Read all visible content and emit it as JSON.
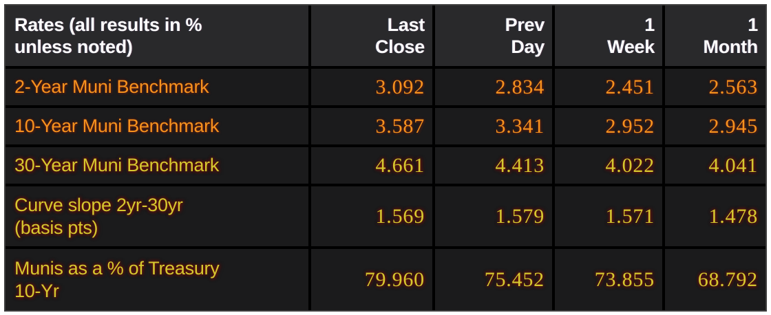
{
  "table": {
    "header": {
      "title": "Rates (all results in %\nunless noted)",
      "columns": [
        "Last\nClose",
        "Prev\nDay",
        "1\nWeek",
        "1\nMonth"
      ]
    },
    "rows": [
      {
        "label": "2-Year Muni Benchmark",
        "values": [
          "3.092",
          "2.834",
          "2.451",
          "2.563"
        ]
      },
      {
        "label": "10-Year Muni Benchmark",
        "values": [
          "3.587",
          "3.341",
          "2.952",
          "2.945"
        ]
      },
      {
        "label": "30-Year Muni Benchmark",
        "values": [
          "4.661",
          "4.413",
          "4.022",
          "4.041"
        ]
      },
      {
        "label": "Curve slope 2yr-30yr\n(basis pts)",
        "values": [
          "1.569",
          "1.579",
          "1.571",
          "1.478"
        ]
      },
      {
        "label": "Munis as a % of Treasury\n10-Yr",
        "values": [
          "79.960",
          "75.452",
          "73.855",
          "68.792"
        ]
      }
    ],
    "colors": {
      "header_text": "#fdfdfd",
      "orange_text": "#f6921e",
      "yellow_text": "#d5c82f",
      "header_bg": "#29292b",
      "cell_bg": "#1b1b1c",
      "grid_line": "#000000"
    }
  },
  "chart_data": {
    "type": "table",
    "title": "Rates (all results in % unless noted)",
    "columns": [
      "Rates (all results in % unless noted)",
      "Last Close",
      "Prev Day",
      "1 Week",
      "1 Month"
    ],
    "rows": [
      [
        "2-Year Muni Benchmark",
        3.092,
        2.834,
        2.451,
        2.563
      ],
      [
        "10-Year Muni Benchmark",
        3.587,
        3.341,
        2.952,
        2.945
      ],
      [
        "30-Year Muni Benchmark",
        4.661,
        4.413,
        4.022,
        4.041
      ],
      [
        "Curve slope 2yr-30yr (basis pts)",
        1.569,
        1.579,
        1.571,
        1.478
      ],
      [
        "Munis as a % of Treasury 10-Yr",
        79.96,
        75.452,
        73.855,
        68.792
      ]
    ],
    "layout_hints": {
      "grid": "on",
      "theme": "dark-terminal",
      "row_text_colors": [
        "orange",
        "orange",
        "yellow",
        "yellow",
        "yellow"
      ]
    }
  }
}
